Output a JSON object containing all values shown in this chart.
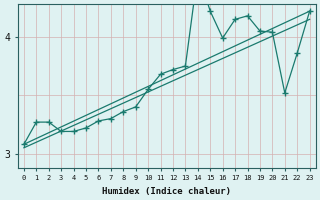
{
  "title": "",
  "xlabel": "Humidex (Indice chaleur)",
  "ylabel": "",
  "bg_color": "#dff2f2",
  "grid_color": "#d4b0b0",
  "line_color": "#1a7a6e",
  "marker": "+",
  "marker_size": 4.0,
  "line_width": 0.9,
  "xlim": [
    -0.5,
    23.5
  ],
  "ylim": [
    2.88,
    4.28
  ],
  "yticks": [
    3,
    4
  ],
  "xticks": [
    0,
    1,
    2,
    3,
    4,
    5,
    6,
    7,
    8,
    9,
    10,
    11,
    12,
    13,
    14,
    15,
    16,
    17,
    18,
    19,
    20,
    21,
    22,
    23
  ],
  "hgrid_vals": [
    3.0,
    3.5,
    4.0
  ],
  "line1_x": [
    0,
    1,
    2,
    3,
    4,
    5,
    6,
    7,
    8,
    9,
    10,
    11,
    12,
    13,
    14,
    15,
    16,
    17,
    18,
    19,
    20,
    21,
    22,
    23
  ],
  "line1_y": [
    3.08,
    3.27,
    3.27,
    3.19,
    3.19,
    3.22,
    3.28,
    3.3,
    3.36,
    3.4,
    3.55,
    3.68,
    3.72,
    3.75,
    4.55,
    4.22,
    3.99,
    4.15,
    4.18,
    4.05,
    4.04,
    3.52,
    3.86,
    4.22
  ],
  "line2_x": [
    0,
    23
  ],
  "line2_y": [
    3.08,
    4.22
  ],
  "line3_x": [
    0,
    23
  ],
  "line3_y": [
    3.05,
    4.15
  ]
}
